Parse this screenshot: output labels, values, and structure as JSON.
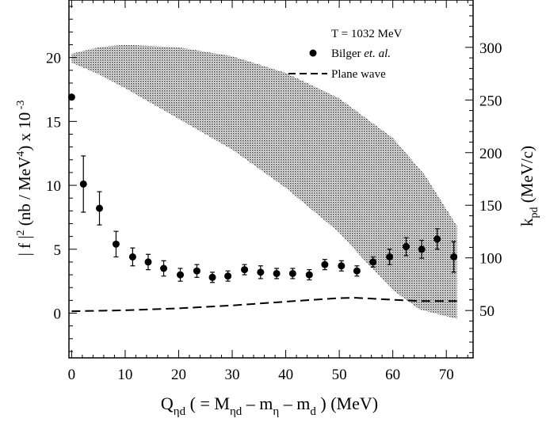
{
  "chart_data": {
    "type": "scatter",
    "title": "",
    "x_axis": {
      "ylim_note": "",
      "range": [
        -0.5,
        75
      ],
      "ticks": [
        0,
        10,
        20,
        30,
        40,
        50,
        60,
        70
      ],
      "label": {
        "main": "Q",
        "sub": "ηd",
        "p1": " ( = M",
        "p1sub": "ηd",
        "p2": " – m",
        "p2sub": "η",
        "p3": " – m",
        "p3sub": "d",
        "p4": " ) (MeV)"
      }
    },
    "y_axis_left": {
      "range": [
        -3.5,
        24.5
      ],
      "ticks": [
        0,
        5,
        10,
        15,
        20
      ],
      "label": {
        "p1": "| f |",
        "sup1": "2",
        "p2": " (nb / MeV",
        "sup2": "4",
        "p3": ") x 10",
        "sup3": " -3"
      }
    },
    "y_axis_right": {
      "range": [
        5,
        345
      ],
      "ticks": [
        50,
        100,
        150,
        200,
        250,
        300
      ],
      "label": {
        "main": "k",
        "sub": "pd",
        "rest": " (MeV/c)"
      }
    },
    "legend": {
      "placement": "top-right",
      "header": "T  = 1032 MeV",
      "entries": [
        {
          "marker": "circle",
          "label_main": "Bilger ",
          "label_italic": "et. al."
        },
        {
          "marker": "dashed-line",
          "label_main": "Plane wave",
          "label_italic": ""
        }
      ]
    },
    "series": [
      {
        "name": "Bilger et. al.",
        "kind": "points-with-errors",
        "color": "#000000",
        "points": [
          {
            "x": 0.0,
            "y": 16.9,
            "err": 0.0
          },
          {
            "x": 2.2,
            "y": 10.1,
            "err": 2.2
          },
          {
            "x": 5.2,
            "y": 8.2,
            "err": 1.3
          },
          {
            "x": 8.3,
            "y": 5.4,
            "err": 1.0
          },
          {
            "x": 11.4,
            "y": 4.4,
            "err": 0.7
          },
          {
            "x": 14.3,
            "y": 4.0,
            "err": 0.6
          },
          {
            "x": 17.2,
            "y": 3.5,
            "err": 0.6
          },
          {
            "x": 20.3,
            "y": 3.0,
            "err": 0.5
          },
          {
            "x": 23.4,
            "y": 3.3,
            "err": 0.5
          },
          {
            "x": 26.3,
            "y": 2.8,
            "err": 0.4
          },
          {
            "x": 29.2,
            "y": 2.9,
            "err": 0.4
          },
          {
            "x": 32.3,
            "y": 3.4,
            "err": 0.4
          },
          {
            "x": 35.3,
            "y": 3.2,
            "err": 0.5
          },
          {
            "x": 38.3,
            "y": 3.1,
            "err": 0.4
          },
          {
            "x": 41.3,
            "y": 3.1,
            "err": 0.4
          },
          {
            "x": 44.4,
            "y": 3.0,
            "err": 0.4
          },
          {
            "x": 47.3,
            "y": 3.8,
            "err": 0.4
          },
          {
            "x": 50.4,
            "y": 3.7,
            "err": 0.4
          },
          {
            "x": 53.3,
            "y": 3.3,
            "err": 0.4
          },
          {
            "x": 56.3,
            "y": 4.0,
            "err": 0.4
          },
          {
            "x": 59.4,
            "y": 4.4,
            "err": 0.6
          },
          {
            "x": 62.5,
            "y": 5.2,
            "err": 0.7
          },
          {
            "x": 65.4,
            "y": 5.0,
            "err": 0.7
          },
          {
            "x": 68.3,
            "y": 5.8,
            "err": 0.8
          },
          {
            "x": 71.4,
            "y": 4.4,
            "err": 1.2
          }
        ]
      },
      {
        "name": "Plane wave",
        "kind": "dashed-line",
        "color": "#000000",
        "points": [
          {
            "x": 0,
            "y": 0.15
          },
          {
            "x": 10,
            "y": 0.22
          },
          {
            "x": 20,
            "y": 0.38
          },
          {
            "x": 30,
            "y": 0.6
          },
          {
            "x": 40,
            "y": 0.9
          },
          {
            "x": 50,
            "y": 1.18
          },
          {
            "x": 53,
            "y": 1.2
          },
          {
            "x": 60,
            "y": 1.05
          },
          {
            "x": 65,
            "y": 0.95
          },
          {
            "x": 72,
            "y": 0.95
          }
        ]
      },
      {
        "kind": "band",
        "color": "#555555",
        "upper": [
          {
            "x": 0,
            "y": 20.3
          },
          {
            "x": 5,
            "y": 20.8
          },
          {
            "x": 10,
            "y": 21.0
          },
          {
            "x": 20,
            "y": 20.8
          },
          {
            "x": 30,
            "y": 20.1
          },
          {
            "x": 40,
            "y": 18.8
          },
          {
            "x": 50,
            "y": 16.8
          },
          {
            "x": 60,
            "y": 13.7
          },
          {
            "x": 66,
            "y": 10.8
          },
          {
            "x": 72,
            "y": 6.8
          }
        ],
        "lower": [
          {
            "x": 0,
            "y": 19.6
          },
          {
            "x": 5,
            "y": 18.7
          },
          {
            "x": 10,
            "y": 17.6
          },
          {
            "x": 20,
            "y": 15.2
          },
          {
            "x": 30,
            "y": 12.8
          },
          {
            "x": 40,
            "y": 9.8
          },
          {
            "x": 50,
            "y": 6.3
          },
          {
            "x": 55,
            "y": 4.0
          },
          {
            "x": 60,
            "y": 1.8
          },
          {
            "x": 65,
            "y": 0.3
          },
          {
            "x": 72,
            "y": -0.45
          }
        ]
      }
    ]
  }
}
